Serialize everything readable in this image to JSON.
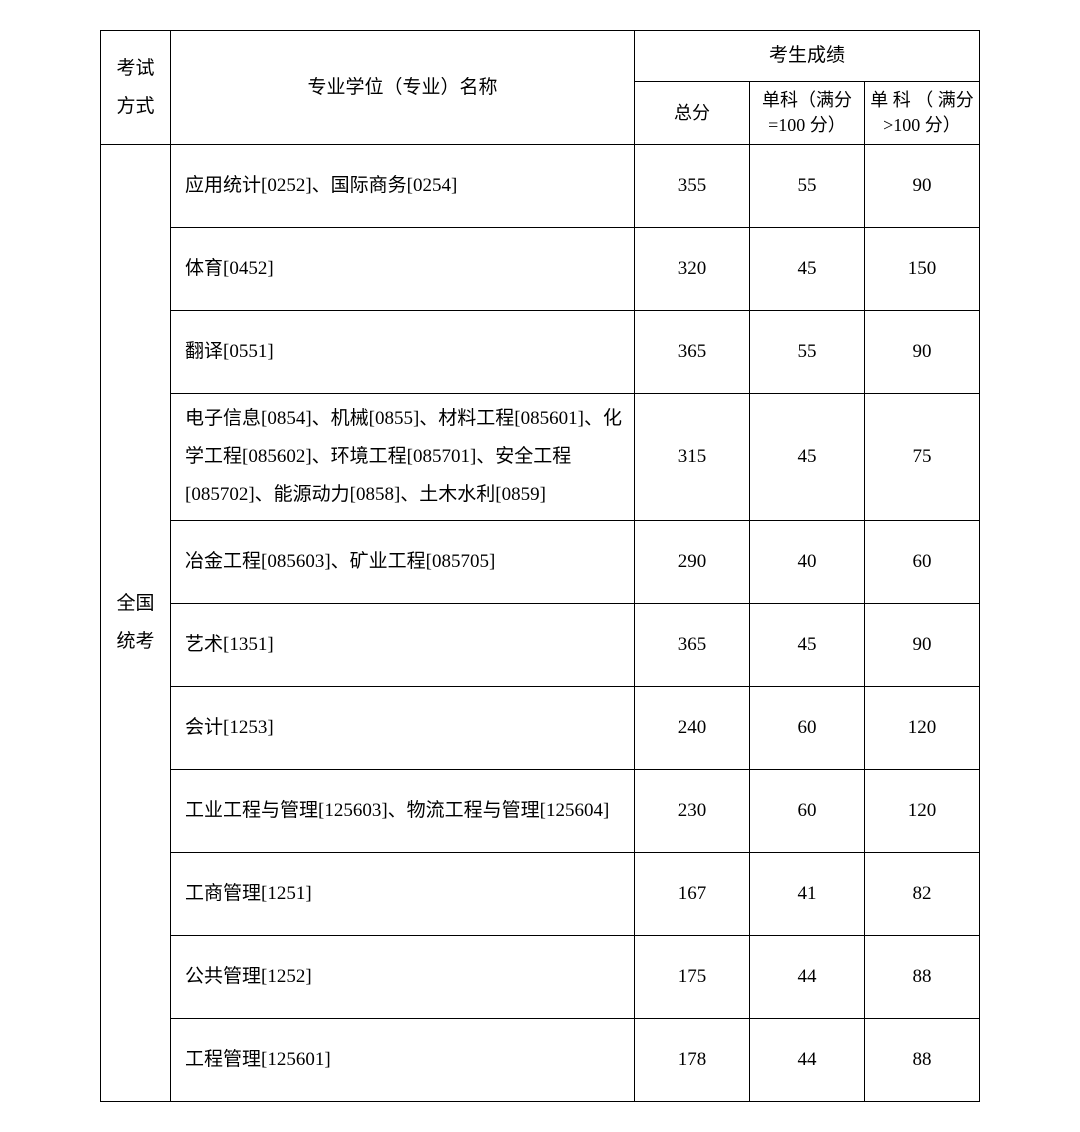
{
  "header": {
    "exam_type": "考试方式",
    "major": "专业学位（专业）名称",
    "score_group": "考生成绩",
    "total": "总分",
    "single100": "单科（满分=100 分）",
    "singleOver100": "单 科 （ 满分>100 分）"
  },
  "exam_type_label": "全国统考",
  "rows": [
    {
      "major": "应用统计[0252]、国际商务[0254]",
      "total": "355",
      "s1": "55",
      "s2": "90"
    },
    {
      "major": "体育[0452]",
      "total": "320",
      "s1": "45",
      "s2": "150"
    },
    {
      "major": "翻译[0551]",
      "total": "365",
      "s1": "55",
      "s2": "90"
    },
    {
      "major": "电子信息[0854]、机械[0855]、材料工程[085601]、化学工程[085602]、环境工程[085701]、安全工程[085702]、能源动力[0858]、土木水利[0859]",
      "total": "315",
      "s1": "45",
      "s2": "75"
    },
    {
      "major": "冶金工程[085603]、矿业工程[085705]",
      "total": "290",
      "s1": "40",
      "s2": "60"
    },
    {
      "major": "艺术[1351]",
      "total": "365",
      "s1": "45",
      "s2": "90"
    },
    {
      "major": "会计[1253]",
      "total": "240",
      "s1": "60",
      "s2": "120"
    },
    {
      "major": "工业工程与管理[125603]、物流工程与管理[125604]",
      "total": "230",
      "s1": "60",
      "s2": "120"
    },
    {
      "major": "工商管理[1251]",
      "total": "167",
      "s1": "41",
      "s2": "82"
    },
    {
      "major": "公共管理[1252]",
      "total": "175",
      "s1": "44",
      "s2": "88"
    },
    {
      "major": "工程管理[125601]",
      "total": "178",
      "s1": "44",
      "s2": "88"
    }
  ]
}
